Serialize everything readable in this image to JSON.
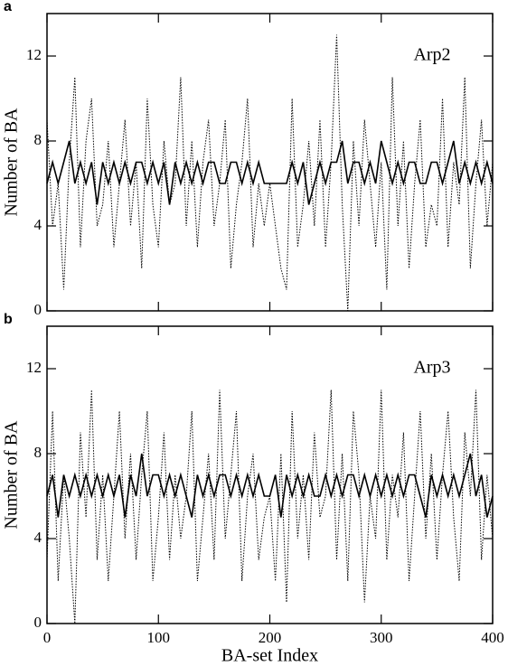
{
  "chart_data": [
    {
      "type": "line",
      "panel_label": "a",
      "annotation": "Arp2",
      "ylabel": "Number of BA",
      "xlim": [
        0,
        400
      ],
      "xticks": [
        0,
        100,
        200,
        300,
        400
      ],
      "show_xtick_labels": false,
      "ylim": [
        0,
        14
      ],
      "yticks": [
        0,
        4,
        8,
        12
      ],
      "x": [
        0,
        5,
        10,
        15,
        20,
        25,
        30,
        35,
        40,
        45,
        50,
        55,
        60,
        65,
        70,
        75,
        80,
        85,
        90,
        95,
        100,
        105,
        110,
        115,
        120,
        125,
        130,
        135,
        140,
        145,
        150,
        155,
        160,
        165,
        170,
        175,
        180,
        185,
        190,
        195,
        200,
        205,
        210,
        215,
        220,
        225,
        230,
        235,
        240,
        245,
        250,
        255,
        260,
        265,
        270,
        275,
        280,
        285,
        290,
        295,
        300,
        305,
        310,
        315,
        320,
        325,
        330,
        335,
        340,
        345,
        350,
        355,
        360,
        365,
        370,
        375,
        380,
        385,
        390,
        395,
        400
      ],
      "series": [
        {
          "color": "#000000",
          "style": "solid",
          "values": [
            6,
            7,
            6,
            7,
            8,
            6,
            7,
            6,
            7,
            5,
            7,
            6,
            7,
            6,
            7,
            6,
            7,
            7,
            6,
            7,
            6,
            7,
            5,
            7,
            6,
            7,
            6,
            7,
            6,
            7,
            7,
            6,
            6,
            7,
            7,
            6,
            7,
            6,
            7,
            6,
            6,
            6,
            6,
            6,
            7,
            6,
            7,
            5,
            6,
            7,
            6,
            7,
            7,
            8,
            6,
            7,
            7,
            6,
            7,
            6,
            8,
            7,
            6,
            7,
            6,
            7,
            7,
            6,
            6,
            7,
            7,
            6,
            7,
            8,
            6,
            7,
            6,
            7,
            6,
            7,
            6
          ]
        },
        {
          "color": "#000000",
          "style": "dotted",
          "values": [
            9,
            4,
            6,
            1,
            7,
            11,
            3,
            8,
            10,
            4,
            5,
            8,
            3,
            6,
            9,
            4,
            7,
            2,
            10,
            5,
            3,
            8,
            5,
            6,
            11,
            4,
            8,
            3,
            7,
            9,
            4,
            6,
            9,
            2,
            5,
            7,
            10,
            3,
            6,
            4,
            6,
            4,
            2,
            1,
            10,
            3,
            5,
            8,
            4,
            9,
            3,
            7,
            13,
            5,
            0,
            8,
            4,
            9,
            6,
            3,
            7,
            1,
            11,
            4,
            8,
            2,
            6,
            9,
            3,
            5,
            4,
            10,
            3,
            7,
            5,
            11,
            2,
            6,
            9,
            4,
            7
          ]
        }
      ]
    },
    {
      "type": "line",
      "panel_label": "b",
      "annotation": "Arp3",
      "ylabel": "Number of BA",
      "xlabel": "BA-set Index",
      "xlim": [
        0,
        400
      ],
      "xticks": [
        0,
        100,
        200,
        300,
        400
      ],
      "show_xtick_labels": true,
      "ylim": [
        0,
        14
      ],
      "yticks": [
        0,
        4,
        8,
        12
      ],
      "x": [
        0,
        5,
        10,
        15,
        20,
        25,
        30,
        35,
        40,
        45,
        50,
        55,
        60,
        65,
        70,
        75,
        80,
        85,
        90,
        95,
        100,
        105,
        110,
        115,
        120,
        125,
        130,
        135,
        140,
        145,
        150,
        155,
        160,
        165,
        170,
        175,
        180,
        185,
        190,
        195,
        200,
        205,
        210,
        215,
        220,
        225,
        230,
        235,
        240,
        245,
        250,
        255,
        260,
        265,
        270,
        275,
        280,
        285,
        290,
        295,
        300,
        305,
        310,
        315,
        320,
        325,
        330,
        335,
        340,
        345,
        350,
        355,
        360,
        365,
        370,
        375,
        380,
        385,
        390,
        395,
        400
      ],
      "series": [
        {
          "color": "#000000",
          "style": "solid",
          "values": [
            6,
            7,
            5,
            7,
            6,
            7,
            6,
            7,
            6,
            7,
            6,
            7,
            6,
            7,
            5,
            7,
            6,
            8,
            6,
            7,
            7,
            6,
            7,
            6,
            7,
            6,
            5,
            7,
            6,
            7,
            6,
            7,
            7,
            6,
            7,
            6,
            7,
            6,
            7,
            6,
            6,
            7,
            5,
            7,
            6,
            7,
            6,
            7,
            6,
            6,
            7,
            6,
            7,
            6,
            7,
            7,
            6,
            7,
            6,
            7,
            6,
            7,
            6,
            7,
            6,
            7,
            7,
            6,
            5,
            7,
            6,
            7,
            6,
            7,
            6,
            7,
            8,
            6,
            7,
            5,
            6
          ]
        },
        {
          "color": "#000000",
          "style": "dotted",
          "values": [
            3,
            10,
            2,
            7,
            4,
            0,
            9,
            5,
            11,
            3,
            7,
            2,
            6,
            10,
            4,
            8,
            3,
            7,
            10,
            2,
            5,
            9,
            3,
            7,
            4,
            6,
            10,
            2,
            5,
            8,
            3,
            11,
            4,
            7,
            10,
            2,
            6,
            8,
            3,
            5,
            6,
            2,
            8,
            1,
            10,
            4,
            7,
            3,
            9,
            5,
            6,
            11,
            3,
            8,
            2,
            10,
            7,
            1,
            6,
            4,
            11,
            3,
            7,
            5,
            9,
            2,
            6,
            10,
            4,
            8,
            3,
            7,
            10,
            5,
            2,
            9,
            6,
            11,
            3,
            7,
            4
          ]
        }
      ]
    }
  ]
}
